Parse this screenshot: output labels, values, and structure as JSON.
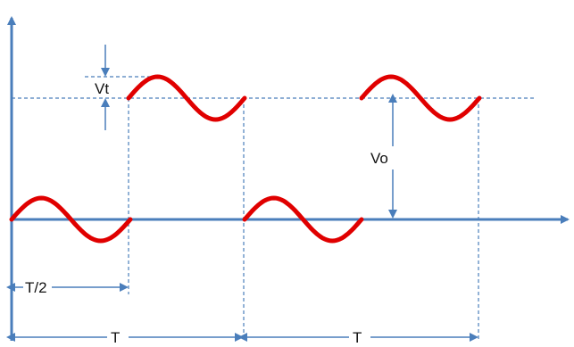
{
  "labels": {
    "vt": "Vt",
    "vo": "Vo",
    "half_period": "T/2",
    "period_1": "T",
    "period_2": "T"
  },
  "colors": {
    "axis": "#4a7ebb",
    "guide": "#4a7ebb",
    "wave": "#e00000",
    "text": "#111111"
  }
}
